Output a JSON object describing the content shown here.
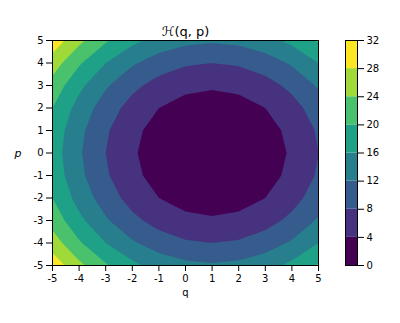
{
  "chart_data": {
    "type": "contour",
    "title": "ℋ(q, p)",
    "x_label": "q",
    "y_label": "p",
    "xlim": [
      -5,
      5
    ],
    "ylim": [
      -5,
      5
    ],
    "xticks": [
      -5,
      -4,
      -3,
      -2,
      -1,
      0,
      1,
      2,
      3,
      4,
      5
    ],
    "yticks": [
      -5,
      -4,
      -3,
      -2,
      -1,
      0,
      1,
      2,
      3,
      4,
      5
    ],
    "q": [
      -5,
      -4,
      -3,
      -2,
      -1,
      0,
      1,
      2,
      3,
      4,
      5
    ],
    "p": [
      -5,
      -4,
      -3,
      -2,
      -1,
      0,
      1,
      2,
      3,
      4,
      5
    ],
    "z": [
      [
        30.5,
        25,
        20.5,
        17,
        14.5,
        13,
        12.5,
        13,
        14.5,
        17,
        20.5
      ],
      [
        26,
        20.5,
        16,
        12.5,
        10,
        8.5,
        8,
        8.5,
        10,
        12.5,
        16
      ],
      [
        22.5,
        17,
        12.5,
        9,
        6.5,
        5,
        4.5,
        5,
        6.5,
        9,
        12.5
      ],
      [
        20,
        14.5,
        10,
        6.5,
        4,
        2.5,
        2,
        2.5,
        4,
        6.5,
        10
      ],
      [
        18.5,
        13,
        8.5,
        5,
        2.5,
        1,
        0.5,
        1,
        2.5,
        5,
        8.5
      ],
      [
        18,
        12.5,
        8,
        4.5,
        2,
        0.5,
        0,
        0.5,
        2,
        4.5,
        8
      ],
      [
        18.5,
        13,
        8.5,
        5,
        2.5,
        1,
        0.5,
        1,
        2.5,
        5,
        8.5
      ],
      [
        20,
        14.5,
        10,
        6.5,
        4,
        2.5,
        2,
        2.5,
        4,
        6.5,
        10
      ],
      [
        22.5,
        17,
        12.5,
        9,
        6.5,
        5,
        4.5,
        5,
        6.5,
        9,
        12.5
      ],
      [
        26,
        20.5,
        16,
        12.5,
        10,
        8.5,
        8,
        8.5,
        10,
        12.5,
        16
      ],
      [
        30.5,
        25,
        20.5,
        17,
        14.5,
        13,
        12.5,
        13,
        14.5,
        17,
        20.5
      ]
    ],
    "colorbar": {
      "range": [
        0,
        32
      ],
      "ticks": [
        0,
        4,
        8,
        12,
        16,
        20,
        24,
        28,
        32
      ]
    }
  }
}
